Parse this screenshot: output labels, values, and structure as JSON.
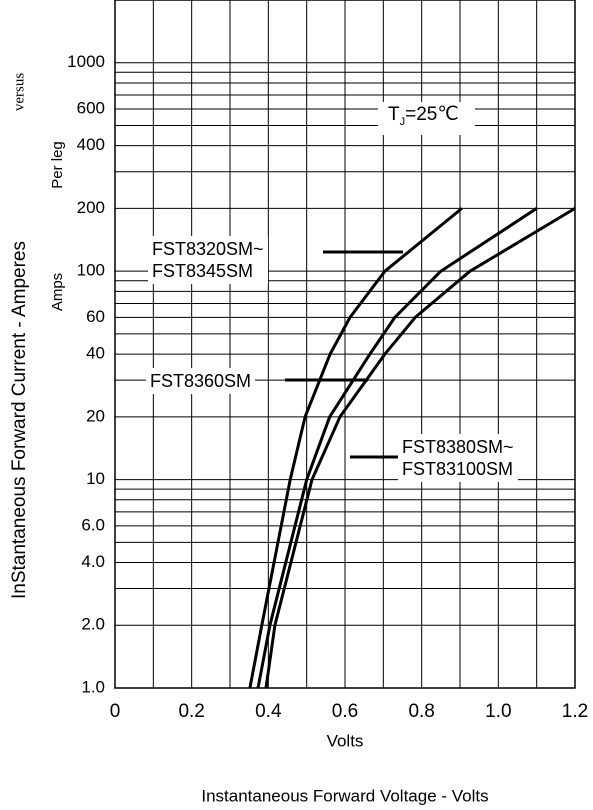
{
  "chart_data": {
    "type": "line",
    "x_label": "Volts",
    "caption": "Instantaneous Forward Voltage - Volts",
    "y_label": "InStantaneous Forward Current - Amperes",
    "y_label_connector": "versus",
    "y_label_2": "Per leg",
    "y_label_3": "Amps",
    "annotation": {
      "main": "T",
      "subscript": "J",
      "suffix": "=25℃"
    },
    "log_y": true,
    "grid": true,
    "xlim": [
      0,
      1.2
    ],
    "ylim": [
      1,
      2000
    ],
    "xticks": [
      0,
      0.2,
      0.4,
      0.6,
      0.8,
      {
        "value": 1,
        "label": "1.0"
      },
      1.2
    ],
    "x_minor_gridlines": [
      0.1,
      0.3,
      0.5,
      0.7,
      0.9,
      1.1
    ],
    "yticks": [
      {
        "value": 1,
        "label": "1.0"
      },
      {
        "value": 2,
        "label": "2.0"
      },
      {
        "value": 4,
        "label": "4.0"
      },
      {
        "value": 6,
        "label": "6.0"
      },
      10,
      20,
      40,
      60,
      100,
      200,
      400,
      600,
      1000
    ],
    "y_minor_gridlines": [
      3,
      5,
      7,
      8,
      9,
      30,
      50,
      70,
      80,
      90,
      300,
      500,
      700,
      800,
      900
    ],
    "series": [
      {
        "name": "FST8320SM~\nFST8345SM",
        "color": "#000000",
        "x": [
          0.352,
          0.383,
          0.457,
          0.496,
          0.561,
          0.613,
          0.704,
          0.905
        ],
        "values": [
          1,
          2,
          10,
          20,
          40,
          60,
          100,
          200
        ]
      },
      {
        "name": "FST8360SM",
        "color": "#000000",
        "x": [
          0.373,
          0.404,
          0.5,
          0.56,
          0.665,
          0.73,
          0.85,
          1.1
        ],
        "values": [
          1,
          2,
          10,
          20,
          40,
          60,
          100,
          200
        ]
      },
      {
        "name": "FST8380SM~\nFST83100SM",
        "color": "#000000",
        "x": [
          0.394,
          0.417,
          0.514,
          0.587,
          0.704,
          0.783,
          0.926,
          1.2
        ],
        "values": [
          1,
          2,
          10,
          20,
          40,
          60,
          100,
          200
        ]
      }
    ]
  }
}
